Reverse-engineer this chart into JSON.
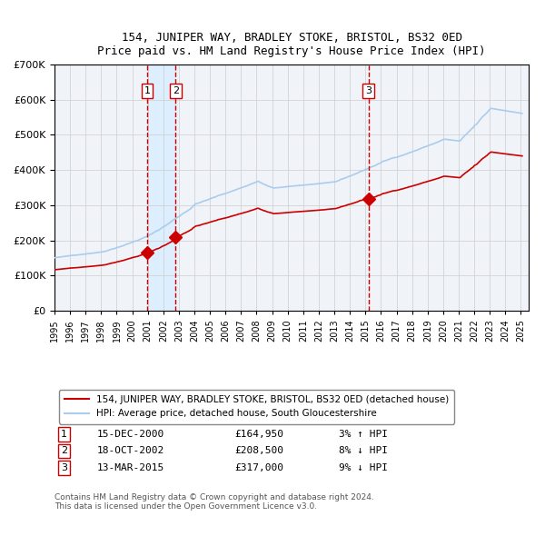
{
  "title1": "154, JUNIPER WAY, BRADLEY STOKE, BRISTOL, BS32 0ED",
  "title2": "Price paid vs. HM Land Registry's House Price Index (HPI)",
  "legend_line1": "154, JUNIPER WAY, BRADLEY STOKE, BRISTOL, BS32 0ED (detached house)",
  "legend_line2": "HPI: Average price, detached house, South Gloucestershire",
  "copyright": "Contains HM Land Registry data © Crown copyright and database right 2024.\nThis data is licensed under the Open Government Licence v3.0.",
  "sale_events": [
    {
      "num": 1,
      "date_num": 2000.96,
      "price": 164950,
      "label": "15-DEC-2000",
      "pct": "3%",
      "dir": "↑"
    },
    {
      "num": 2,
      "date_num": 2002.8,
      "price": 208500,
      "label": "18-OCT-2002",
      "pct": "8%",
      "dir": "↓"
    },
    {
      "num": 3,
      "date_num": 2015.2,
      "price": 317000,
      "label": "13-MAR-2015",
      "pct": "9%",
      "dir": "↓"
    }
  ],
  "shaded_region": [
    2001.0,
    2002.8
  ],
  "hpi_color": "#aaccee",
  "red_line_color": "#cc0000",
  "sale_marker_color": "#cc0000",
  "dashed_line_color": "#cc0000",
  "shaded_color": "#ddeeff",
  "background_color": "#f0f4f8",
  "grid_color": "#cccccc",
  "ylim": [
    0,
    700000
  ],
  "xlim_start": 1995.0,
  "xlim_end": 2025.5
}
